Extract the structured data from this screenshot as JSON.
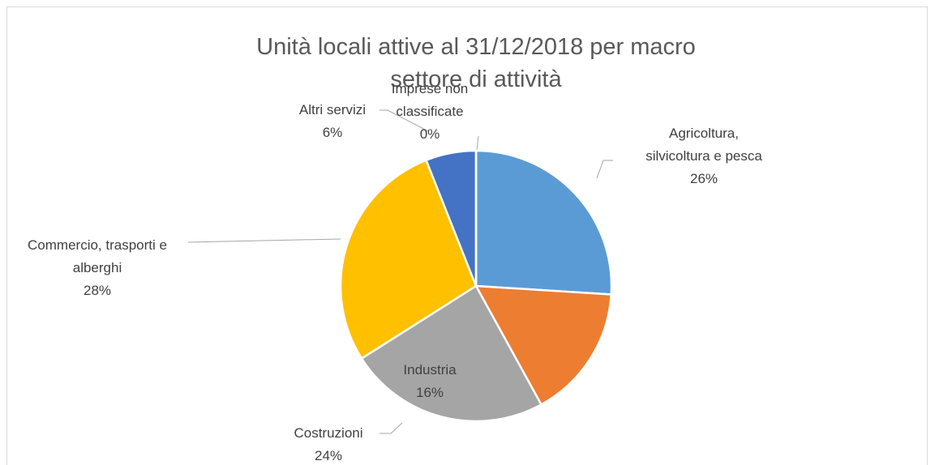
{
  "chart_data": {
    "type": "pie",
    "title": "Unità locali attive al 31/12/2018 per macro settore di attività",
    "categories": [
      "Agricoltura, silvicoltura e pesca",
      "Industria",
      "Costruzioni",
      "Commercio, trasporti e alberghi",
      "Altri servizi",
      "Imprese non classificate"
    ],
    "values": [
      26,
      16,
      24,
      28,
      6,
      0
    ],
    "value_labels": [
      "26%",
      "16%",
      "24%",
      "28%",
      "6%",
      "0%"
    ],
    "colors": [
      "#5b9bd5",
      "#ed7d31",
      "#a5a5a5",
      "#ffc000",
      "#4472c4",
      "#70ad47"
    ]
  }
}
